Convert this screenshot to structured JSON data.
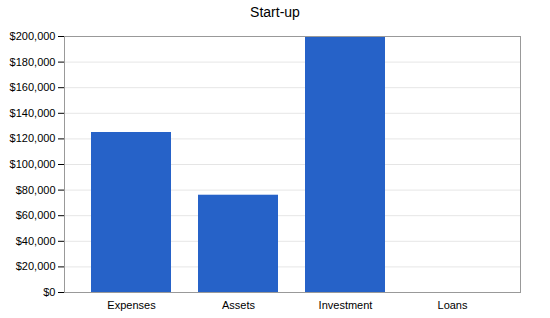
{
  "chart_data": {
    "type": "bar",
    "title": "Start-up",
    "categories": [
      "Expenses",
      "Assets",
      "Investment",
      "Loans"
    ],
    "values": [
      125000,
      76000,
      200000,
      0
    ],
    "color": "#2662c8",
    "ylim": [
      0,
      200000
    ],
    "yticks": [
      0,
      {
        "value": 0,
        "label": "$0"
      },
      {
        "value": 20000,
        "label": "$20,000"
      },
      {
        "value": 40000,
        "label": "$40,000"
      },
      {
        "value": 60000,
        "label": "$60,000"
      },
      {
        "value": 80000,
        "label": "$80,000"
      },
      {
        "value": 100000,
        "label": "$100,000"
      },
      {
        "value": 120000,
        "label": "$120,000"
      },
      {
        "value": 140000,
        "label": "$140,000"
      },
      {
        "value": 160000,
        "label": "$160,000"
      },
      {
        "value": 180000,
        "label": "$180,000"
      },
      {
        "value": 200000,
        "label": "$200,000"
      }
    ],
    "grid": true
  }
}
